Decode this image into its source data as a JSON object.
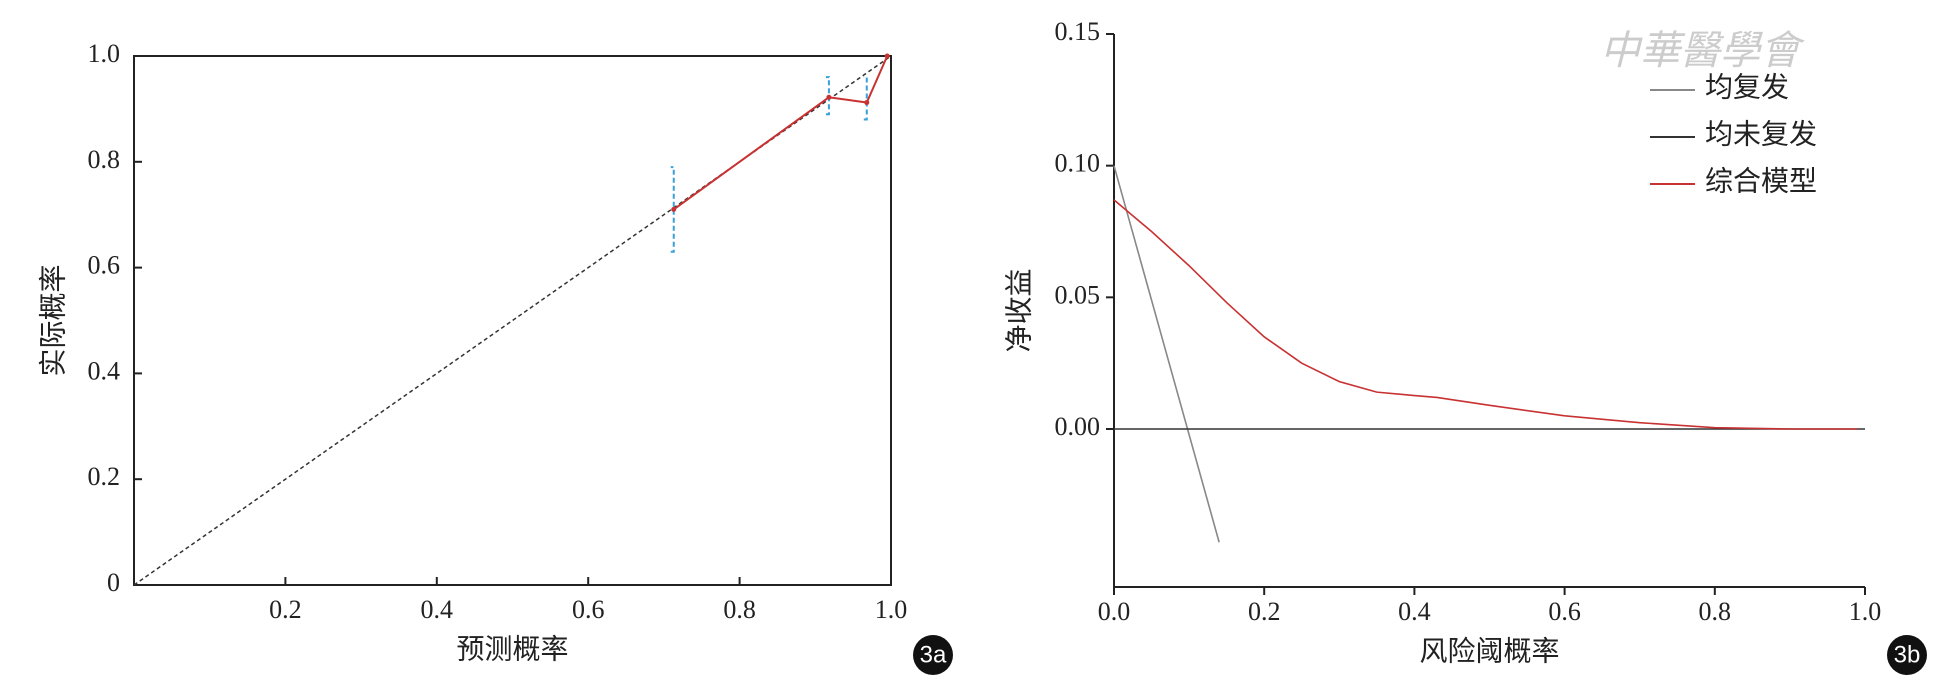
{
  "watermark": "中華醫學會",
  "chart_data": [
    {
      "type": "calibration",
      "panel_label": "3a",
      "xlabel": "预测概率",
      "ylabel": "实际概率",
      "xlim": [
        0,
        1
      ],
      "ylim": [
        0,
        1
      ],
      "xticks": [
        0.2,
        0.4,
        0.6,
        0.8,
        {
          "value": 1,
          "label": "1.0"
        }
      ],
      "yticks": [
        0,
        0.2,
        0.4,
        0.6,
        0.8,
        {
          "value": 1,
          "label": "1.0"
        }
      ],
      "x": [
        0.713,
        0.918,
        0.968,
        0.995
      ],
      "values": [
        0.71,
        0.922,
        0.912,
        1.0
      ],
      "lower": [
        0.63,
        0.89,
        0.88,
        null
      ],
      "upper": [
        0.79,
        0.96,
        0.96,
        null
      ],
      "color": "#c83232",
      "error_color": "#3aa0d8"
    },
    {
      "type": "line",
      "panel_label": "3b",
      "xlabel": "风险阈概率",
      "ylabel": "净收益",
      "xlim": [
        0,
        1
      ],
      "ylim": [
        -0.06,
        0.15
      ],
      "xticks": [
        {
          "value": 0,
          "label": "0.0"
        },
        0.2,
        0.4,
        0.6,
        0.8,
        {
          "value": 1,
          "label": "1.0"
        }
      ],
      "yticks": [
        {
          "value": 0,
          "label": "0.00"
        },
        0.05,
        {
          "value": 0.1,
          "label": "0.10"
        },
        0.15
      ],
      "legend": "upper right",
      "series": [
        {
          "name": "均复发",
          "color": "#888888",
          "x": [
            0,
            0.14
          ],
          "values": [
            0.1,
            -0.043
          ]
        },
        {
          "name": "均未复发",
          "color": "#333333",
          "x": [
            0,
            1
          ],
          "values": [
            0,
            0
          ]
        },
        {
          "name": "综合模型",
          "color": "#c83232",
          "x": [
            0,
            0.05,
            0.1,
            0.15,
            0.2,
            0.25,
            0.3,
            0.35,
            0.4,
            0.43,
            0.5,
            0.6,
            0.7,
            0.8,
            0.9,
            0.99
          ],
          "values": [
            0.087,
            0.075,
            0.062,
            0.048,
            0.035,
            0.025,
            0.018,
            0.014,
            0.0127,
            0.012,
            0.009,
            0.005,
            0.0024,
            0.0005,
            0,
            0
          ]
        }
      ]
    }
  ]
}
